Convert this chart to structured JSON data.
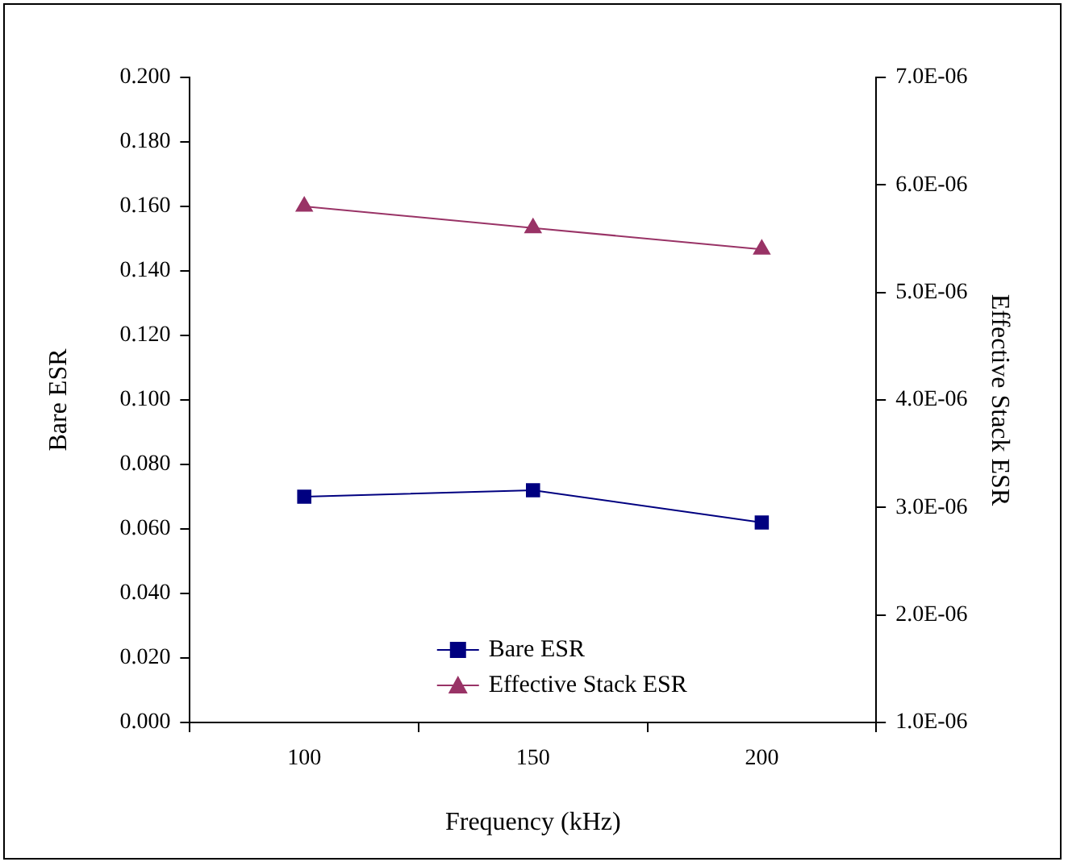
{
  "chart_data": {
    "type": "line",
    "xlabel": "Frequency (kHz)",
    "ylabel": "Bare ESR",
    "y2label": "Effective Stack ESR",
    "categories": [
      "100",
      "150",
      "200"
    ],
    "series": [
      {
        "name": "Bare ESR",
        "color": "#000080",
        "values": [
          0.07,
          0.072,
          0.062
        ],
        "marker": "square"
      },
      {
        "name": "Effective Stack ESR",
        "color": "#993366",
        "values": [
          5.8e-06,
          5.6e-06,
          5.4e-06
        ],
        "axis": "y2",
        "marker": "triangle"
      }
    ],
    "ylim": [
      0,
      0.2
    ],
    "yticks": [
      {
        "value": 0,
        "label": "0.000"
      },
      {
        "value": 0.02,
        "label": "0.020"
      },
      {
        "value": 0.04,
        "label": "0.040"
      },
      {
        "value": 0.06,
        "label": "0.060"
      },
      {
        "value": 0.08,
        "label": "0.080"
      },
      {
        "value": 0.1,
        "label": "0.100"
      },
      {
        "value": 0.12,
        "label": "0.120"
      },
      {
        "value": 0.14,
        "label": "0.140"
      },
      {
        "value": 0.16,
        "label": "0.160"
      },
      {
        "value": 0.18,
        "label": "0.180"
      },
      {
        "value": 0.2,
        "label": "0.200"
      }
    ],
    "y2lim": [
      1e-06,
      7e-06
    ],
    "y2ticks": [
      {
        "value": 1e-06,
        "label": "1.0E-06"
      },
      {
        "value": 2e-06,
        "label": "2.0E-06"
      },
      {
        "value": 3e-06,
        "label": "3.0E-06"
      },
      {
        "value": 4e-06,
        "label": "4.0E-06"
      },
      {
        "value": 5e-06,
        "label": "5.0E-06"
      },
      {
        "value": 6e-06,
        "label": "6.0E-06"
      },
      {
        "value": 7e-06,
        "label": "7.0E-06"
      }
    ],
    "grid": false,
    "legend": "bottom",
    "line_style": "solid"
  }
}
